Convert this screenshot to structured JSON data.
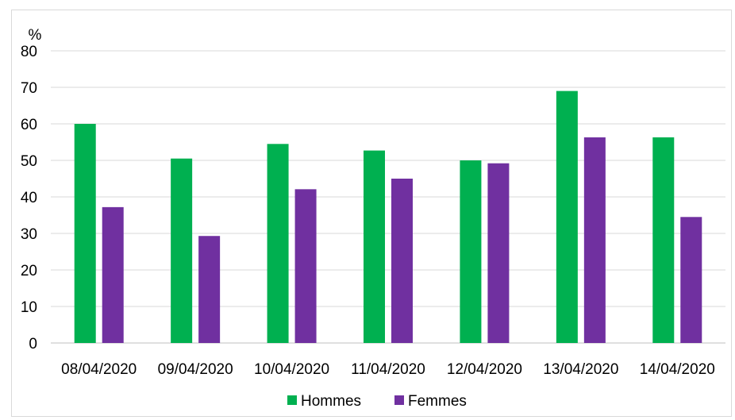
{
  "chart_data": {
    "type": "bar",
    "title": "",
    "xlabel": "",
    "ylabel": "%",
    "ylim": [
      0,
      80
    ],
    "yticks": [
      0,
      10,
      20,
      30,
      40,
      50,
      60,
      70,
      80
    ],
    "grid": true,
    "legend_position": "bottom",
    "categories": [
      "08/04/2020",
      "09/04/2020",
      "10/04/2020",
      "11/04/2020",
      "12/04/2020",
      "13/04/2020",
      "14/04/2020"
    ],
    "series": [
      {
        "name": "Hommes",
        "color": "#00b050",
        "values": [
          60,
          50.5,
          54.5,
          52.7,
          50,
          69,
          56.3
        ]
      },
      {
        "name": "Femmes",
        "color": "#7030a0",
        "values": [
          37.2,
          29.3,
          42.1,
          45,
          49.2,
          56.3,
          34.5
        ]
      }
    ]
  }
}
